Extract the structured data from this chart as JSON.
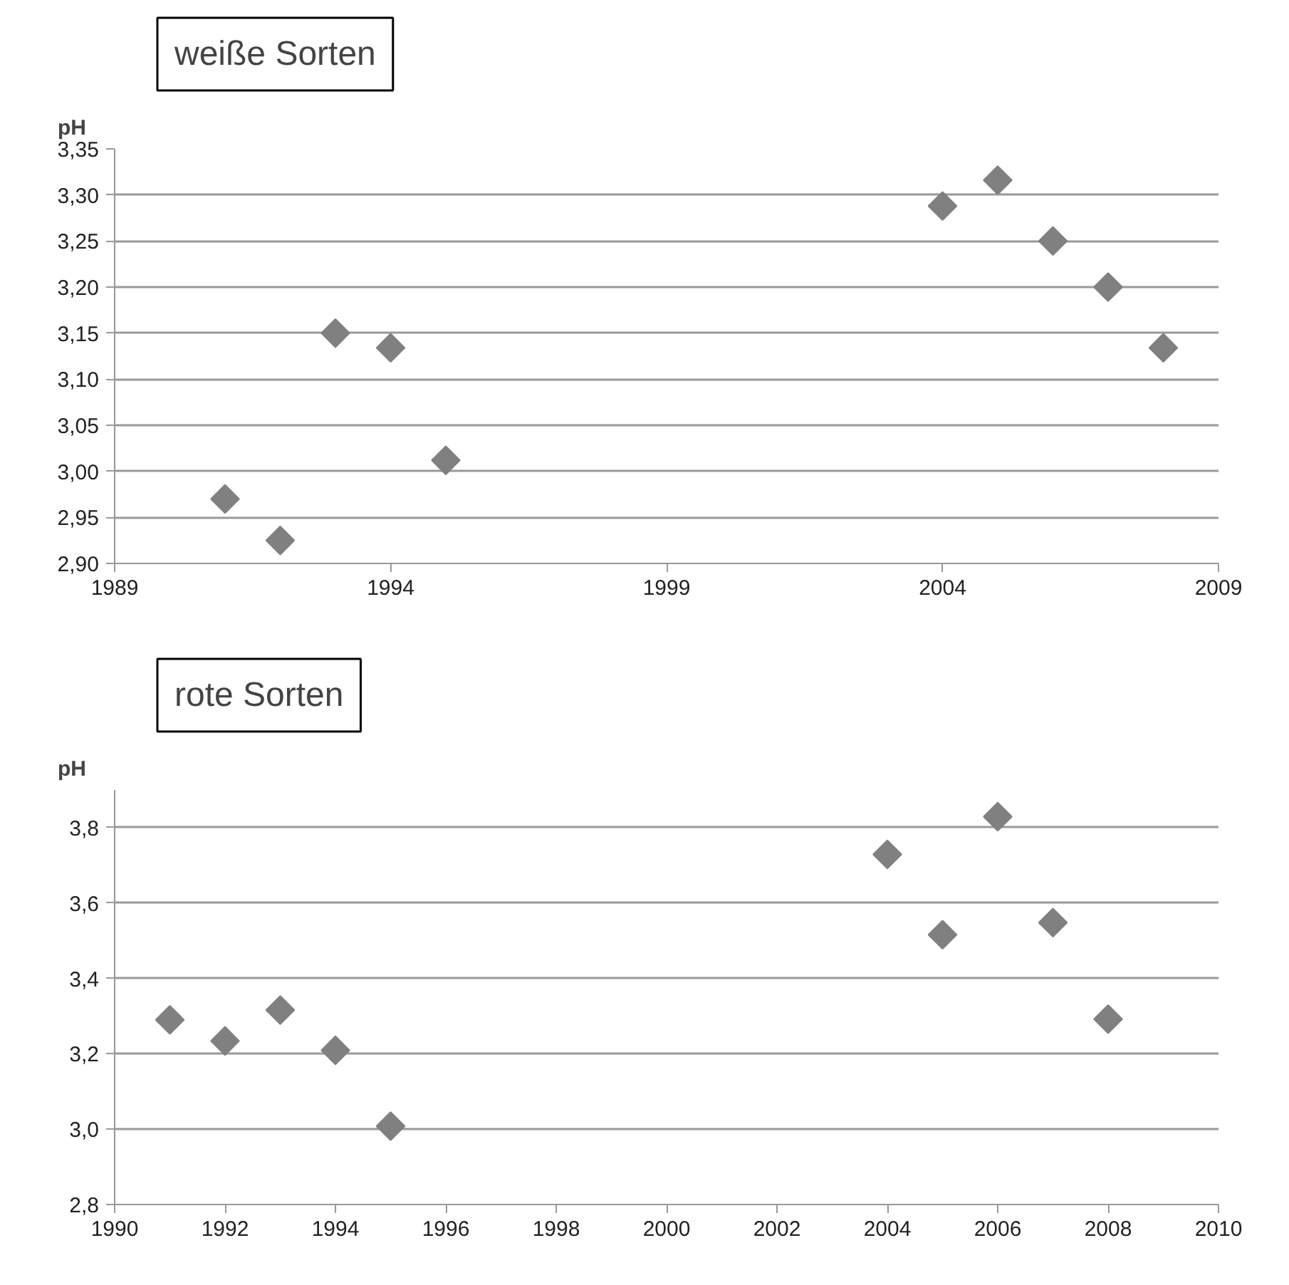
{
  "chart_data": [
    {
      "type": "scatter",
      "title": "weiße Sorten",
      "ylabel": "pH",
      "x": [
        1991,
        1992,
        1993,
        1994,
        1995,
        2004,
        2005,
        2006,
        2007,
        2008
      ],
      "series": [
        {
          "color": "#808080",
          "values": [
            2.97,
            2.925,
            3.15,
            3.134,
            3.012,
            3.288,
            3.316,
            3.25,
            3.2,
            3.134
          ]
        }
      ],
      "xlim": [
        1989,
        2009
      ],
      "xticks": [
        1989,
        1994,
        1999,
        2004,
        2009
      ],
      "ylim": [
        2.9,
        3.35
      ],
      "yticks": [
        {
          "value": 2.9,
          "label": "2,90"
        },
        {
          "value": 2.95,
          "label": "2,95"
        },
        {
          "value": 3.0,
          "label": "3,00"
        },
        {
          "value": 3.05,
          "label": "3,05"
        },
        {
          "value": 3.1,
          "label": "3,10"
        },
        {
          "value": 3.15,
          "label": "3,15"
        },
        {
          "value": 3.2,
          "label": "3,20"
        },
        {
          "value": 3.25,
          "label": "3,25"
        },
        {
          "value": 3.3,
          "label": "3,30"
        },
        {
          "value": 3.35,
          "label": "3,35"
        }
      ],
      "grid": "y",
      "marker": "diamond"
    },
    {
      "type": "scatter",
      "title": "rote Sorten",
      "ylabel": "pH",
      "x": [
        1991,
        1992,
        1993,
        1994,
        1995,
        2004,
        2005,
        2006,
        2007,
        2008
      ],
      "series": [
        {
          "color": "#808080",
          "values": [
            3.29,
            3.234,
            3.316,
            3.209,
            3.008,
            3.729,
            3.516,
            3.829,
            3.548,
            3.292
          ]
        }
      ],
      "xlim": [
        1990,
        2010
      ],
      "xticks": [
        1990,
        1992,
        1994,
        1996,
        1998,
        2000,
        2002,
        2004,
        2006,
        2008,
        2010
      ],
      "ylim": [
        2.8,
        3.9
      ],
      "yticks": [
        {
          "value": 2.8,
          "label": "2,8"
        },
        {
          "value": 3.0,
          "label": "3,0"
        },
        {
          "value": 3.2,
          "label": "3,2"
        },
        {
          "value": 3.4,
          "label": "3,4"
        },
        {
          "value": 3.6,
          "label": "3,6"
        },
        {
          "value": 3.8,
          "label": "3,8"
        }
      ],
      "grid": "y",
      "marker": "diamond"
    }
  ]
}
